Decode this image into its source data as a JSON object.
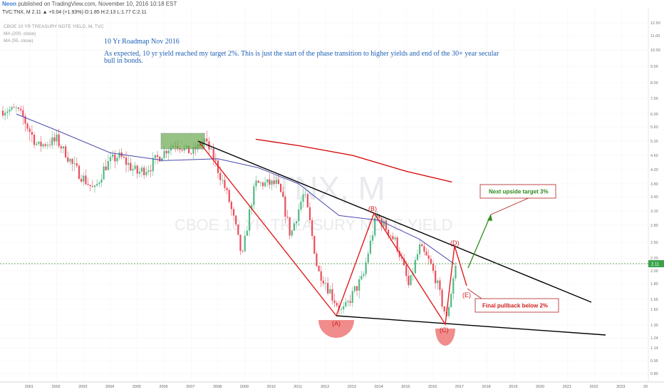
{
  "publish_bar": {
    "author": "Neon",
    "text": "published on TradingView.com, November 10, 2016 10:18 EST"
  },
  "header": {
    "symbol_line": "TVC:TNX, M  2.11 ▲ +0.04 (+1.93%) O:1.85 H:2.13 L:1.77 C:2.11",
    "instrument": "CBOE 10 YR TREASURY NOTE YIELD, M, TVC",
    "ma1": "MA (200, close)",
    "ma2": "MA (55, close)"
  },
  "annotation": {
    "title": "10 Yr Roadmap Nov 2016",
    "line1": "As expected, 10 yr yield reached my target 2%. This is just the start of the phase transition to higher yields and end of the 30+ year secular",
    "line2": "bull in bonds."
  },
  "watermark": {
    "ticker": "TNX, M",
    "name": "CBOE 10 YR TREASURY NOTE YIELD"
  },
  "colors": {
    "candle_up": "#53b987",
    "candle_down": "#eb4d5c",
    "ma200": "#d40000",
    "ma55": "#4b4bb0",
    "wave": "#e01e1e",
    "trend": "#000000",
    "projection": "#2e8b1e",
    "box": "#6aa84f"
  },
  "chart_data": {
    "type": "candlestick",
    "title": "CBOE 10 YR TREASURY NOTE YIELD, M, TVC",
    "x_axis_labels": [
      "2001",
      "2002",
      "2003",
      "2004",
      "2005",
      "2006",
      "2007",
      "2008",
      "2009",
      "2010",
      "2011",
      "2012",
      "2013",
      "2014",
      "2015",
      "2016",
      "2017",
      "2018",
      "2019",
      "2020",
      "2021",
      "2022",
      "2023",
      "20"
    ],
    "y_axis_labels": [
      "12.50",
      "11.00",
      "10.00",
      "9.00",
      "8.00",
      "7.00",
      "6.00",
      "5.60",
      "5.20",
      "4.60",
      "4.20",
      "3.80",
      "3.40",
      "3.10",
      "2.80",
      "2.50",
      "2.20",
      "2.00",
      "1.80",
      "1.65",
      "1.50",
      "1.30",
      "1.24",
      "1.14",
      "0.95",
      "0.80"
    ],
    "ylim": [
      0.8,
      12.5
    ],
    "scale": "log",
    "last_price": "2.11",
    "series": [
      {
        "name": "MA (200, close)",
        "x": [
          2009.4,
          2011.0,
          2013.0,
          2015.0,
          2016.7
        ],
        "y": [
          5.25,
          5.0,
          4.6,
          4.15,
          3.85
        ]
      },
      {
        "name": "MA (55, close)",
        "x": [
          2000.5,
          2002.0,
          2004.0,
          2006.0,
          2008.0,
          2009.5,
          2011.0,
          2012.5,
          2014.0,
          2015.5,
          2016.8
        ],
        "y": [
          6.0,
          5.5,
          4.7,
          4.45,
          4.5,
          4.25,
          3.8,
          3.0,
          2.9,
          2.55,
          2.1
        ]
      }
    ],
    "wave_points": [
      {
        "label": "",
        "x": 2007.5,
        "y": 5.25
      },
      {
        "label": "(A)",
        "x": 2012.6,
        "y": 1.47
      },
      {
        "label": "(B)",
        "x": 2013.9,
        "y": 3.05
      },
      {
        "label": "(C)",
        "x": 2016.5,
        "y": 1.36
      },
      {
        "label": "(D)",
        "x": 2016.9,
        "y": 2.4
      },
      {
        "label": "(E)",
        "x": 2017.3,
        "y": 1.77
      }
    ],
    "annotations": [
      "Next upside target 3%",
      "Final pullback below 2%"
    ]
  }
}
